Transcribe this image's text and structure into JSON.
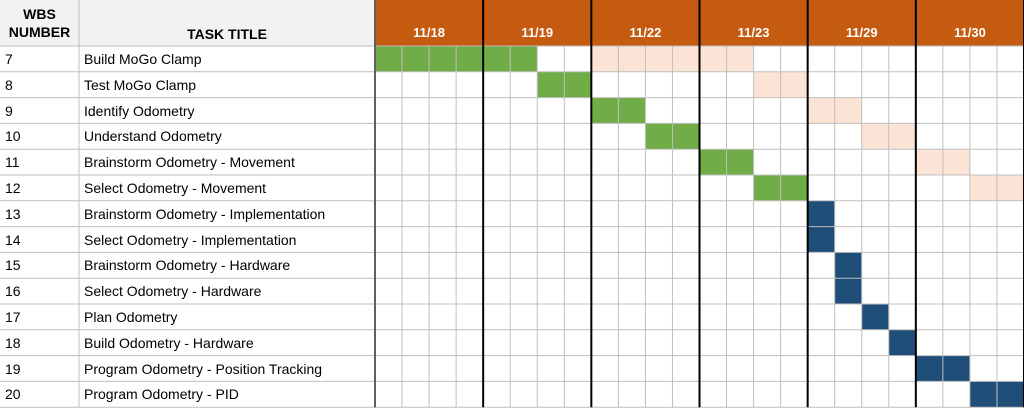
{
  "header": {
    "wbs_line1": "WBS",
    "wbs_line2": "NUMBER",
    "task_title": "TASK TITLE"
  },
  "colors": {
    "header_bg": "#f2f2f2",
    "date_header_bg": "#c55a11",
    "planned": "#fbe3d6",
    "done_green": "#70ad47",
    "scheduled_blue": "#1f4e79",
    "grid": "#bfbfbf"
  },
  "chart_data": {
    "type": "table",
    "date_groups": [
      "11/18",
      "11/19",
      "11/22",
      "11/23",
      "11/29",
      "11/30"
    ],
    "slots_per_date": 4,
    "tasks": [
      {
        "wbs": "7",
        "title": "Build MoGo Clamp",
        "green": [
          0,
          6
        ],
        "planned": [
          8,
          14
        ]
      },
      {
        "wbs": "8",
        "title": "Test MoGo Clamp",
        "green": [
          6,
          8
        ],
        "planned": [
          14,
          16
        ]
      },
      {
        "wbs": "9",
        "title": "Identify Odometry",
        "green": [
          8,
          10
        ],
        "planned": [
          16,
          18
        ]
      },
      {
        "wbs": "10",
        "title": "Understand Odometry",
        "green": [
          10,
          12
        ],
        "planned": [
          18,
          20
        ]
      },
      {
        "wbs": "11",
        "title": "Brainstorm Odometry - Movement",
        "green": [
          12,
          14
        ],
        "planned": [
          20,
          22
        ]
      },
      {
        "wbs": "12",
        "title": "Select Odometry - Movement",
        "green": [
          14,
          16
        ],
        "planned": [
          22,
          24
        ]
      },
      {
        "wbs": "13",
        "title": "Brainstorm Odometry - Implementation",
        "blue": [
          16,
          17
        ]
      },
      {
        "wbs": "14",
        "title": "Select Odometry - Implementation",
        "blue": [
          16,
          17
        ]
      },
      {
        "wbs": "15",
        "title": "Brainstorm Odometry - Hardware",
        "blue": [
          17,
          18
        ]
      },
      {
        "wbs": "16",
        "title": "Select Odometry - Hardware",
        "blue": [
          17,
          18
        ]
      },
      {
        "wbs": "17",
        "title": "Plan Odometry",
        "blue": [
          18,
          19
        ]
      },
      {
        "wbs": "18",
        "title": "Build Odometry - Hardware",
        "blue": [
          19,
          20
        ]
      },
      {
        "wbs": "19",
        "title": "Program Odometry - Position Tracking",
        "blue": [
          20,
          22
        ]
      },
      {
        "wbs": "20",
        "title": "Program Odometry - PID",
        "blue": [
          22,
          24
        ]
      }
    ]
  }
}
